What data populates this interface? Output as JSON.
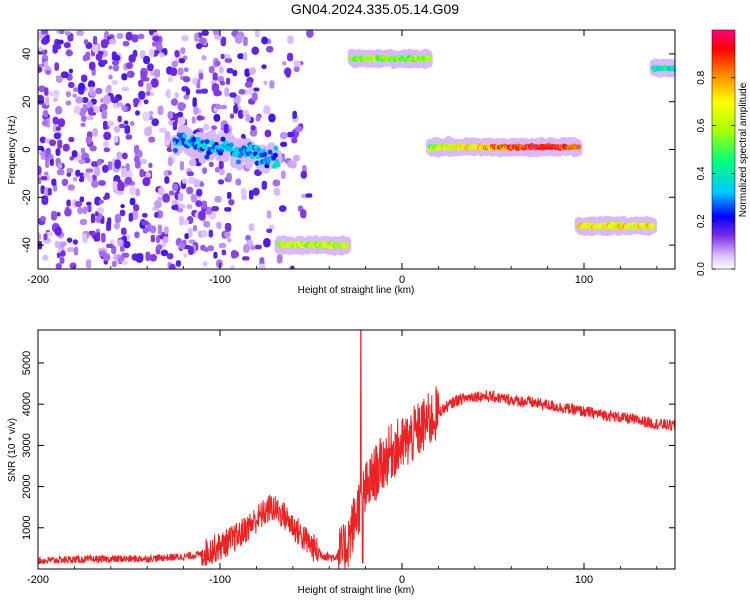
{
  "title": "GN04.2024.335.05.14.G09",
  "chart_data": [
    {
      "type": "heatmap",
      "xlabel": "Height of straight line (km)",
      "ylabel": "Frequency (Hz)",
      "xlim": [
        -200,
        150
      ],
      "ylim": [
        -50,
        50
      ],
      "xticks": [
        "-200",
        "-100",
        "0",
        "100"
      ],
      "yticks": [
        "-40",
        "-20",
        "0",
        "20",
        "40"
      ],
      "colorbar": {
        "label": "Normalized spectral amplitude",
        "range": [
          0.0,
          1.0
        ],
        "ticks": [
          "0.0",
          "0.2",
          "0.4",
          "0.6",
          "0.8"
        ],
        "colors": [
          "#ffffff",
          "#d8b8ff",
          "#7a2be2",
          "#0000ff",
          "#00c8ff",
          "#00ff80",
          "#ffff00",
          "#ff8000",
          "#ff0000",
          "#ff0080"
        ]
      },
      "segments": [
        {
          "x": [
            -200,
            -120
          ],
          "freq": 0,
          "amplitude": 0.1
        },
        {
          "x": [
            -125,
            -68
          ],
          "freq": 0,
          "amplitude": 0.3
        },
        {
          "x": [
            -68,
            -30
          ],
          "freq": -40,
          "amplitude": 0.6
        },
        {
          "x": [
            -28,
            15
          ],
          "freq": 38,
          "amplitude": 0.55
        },
        {
          "x": [
            15,
            97
          ],
          "freq": 1,
          "amplitude": 0.75
        },
        {
          "x": [
            97,
            138
          ],
          "freq": -32,
          "amplitude": 0.7
        },
        {
          "x": [
            138,
            150
          ],
          "freq": 34,
          "amplitude": 0.4
        }
      ]
    },
    {
      "type": "line",
      "xlabel": "Height of straight line (km)",
      "ylabel": "SNR (10 * v/v)",
      "xlim": [
        -200,
        150
      ],
      "ylim": [
        0,
        5800
      ],
      "xticks": [
        "-200",
        "-100",
        "0",
        "100"
      ],
      "yticks": [
        "1000",
        "2000",
        "3000",
        "4000",
        "5000"
      ],
      "color": "#ee2222",
      "x": [
        -200,
        -180,
        -160,
        -140,
        -120,
        -110,
        -100,
        -90,
        -80,
        -72,
        -65,
        -55,
        -45,
        -38,
        -32,
        -28,
        -24,
        -20,
        -15,
        -10,
        -5,
        0,
        10,
        20,
        30,
        40,
        50,
        60,
        70,
        80,
        90,
        100,
        110,
        120,
        130,
        140,
        150
      ],
      "y": [
        200,
        230,
        240,
        250,
        300,
        360,
        550,
        800,
        1200,
        1500,
        1300,
        800,
        350,
        280,
        400,
        900,
        1500,
        1900,
        2300,
        2600,
        2900,
        3000,
        3400,
        3800,
        4100,
        4200,
        4180,
        4100,
        4050,
        3980,
        3900,
        3820,
        3750,
        3680,
        3600,
        3520,
        3480
      ]
    }
  ]
}
